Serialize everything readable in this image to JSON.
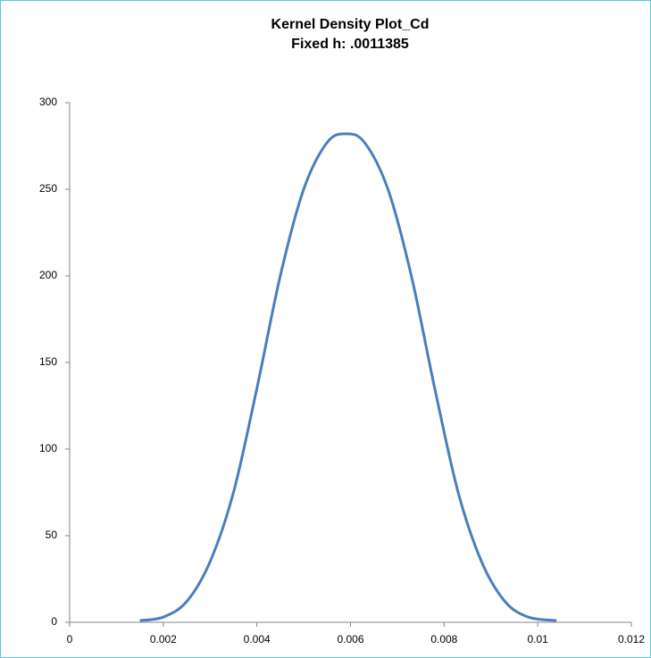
{
  "chart_data": {
    "type": "line",
    "title": "Kernel Density Plot_Cd",
    "subtitle": "Fixed h: .0011385",
    "x": [
      0.0015,
      0.002,
      0.0025,
      0.003,
      0.0035,
      0.004,
      0.0045,
      0.005,
      0.0055,
      0.0059,
      0.0063,
      0.0068,
      0.0073,
      0.0078,
      0.0083,
      0.0088,
      0.0093,
      0.0098,
      0.0104
    ],
    "series": [
      {
        "color": "#4a7ebb",
        "values": [
          1,
          3,
          12,
          35,
          75,
          135,
          200,
          250,
          277,
          282,
          277,
          250,
          200,
          135,
          75,
          35,
          12,
          3,
          1
        ]
      }
    ],
    "xlim": [
      0,
      0.012
    ],
    "xticks": [
      0,
      0.002,
      0.004,
      0.006,
      0.008,
      0.01,
      0.012
    ],
    "ylim": [
      0,
      300
    ],
    "yticks": [
      0,
      50,
      100,
      150,
      200,
      250,
      300
    ],
    "grid": false
  }
}
